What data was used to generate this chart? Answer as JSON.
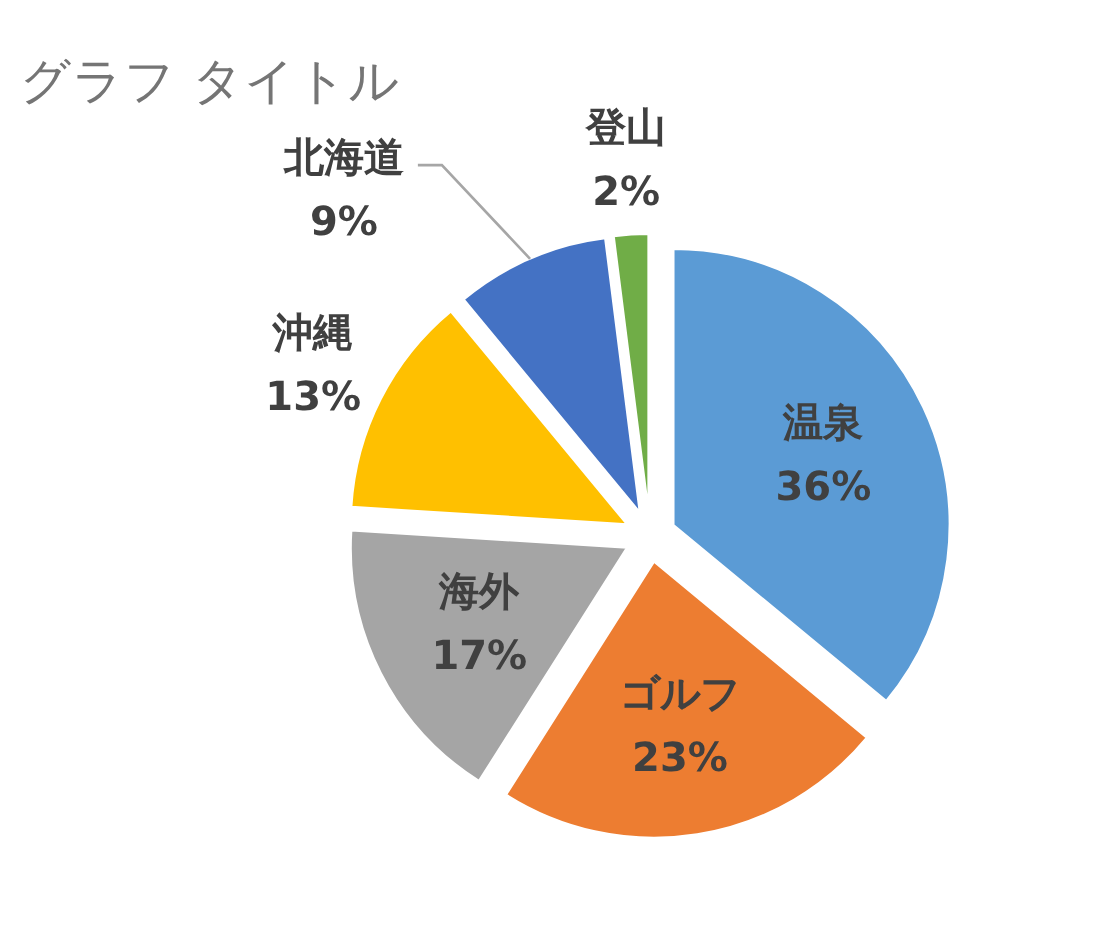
{
  "chart_data": {
    "type": "pie",
    "title": "グラフ タイトル",
    "categories": [
      "温泉",
      "ゴルフ",
      "海外",
      "沖縄",
      "北海道",
      "登山"
    ],
    "values": [
      36,
      23,
      17,
      13,
      9,
      2
    ],
    "value_labels": [
      "36%",
      "23%",
      "17%",
      "13%",
      "9%",
      "2%"
    ],
    "colors": [
      "#5b9bd5",
      "#ed7d31",
      "#a5a5a5",
      "#ffc000",
      "#4472c4",
      "#70ad47"
    ]
  }
}
